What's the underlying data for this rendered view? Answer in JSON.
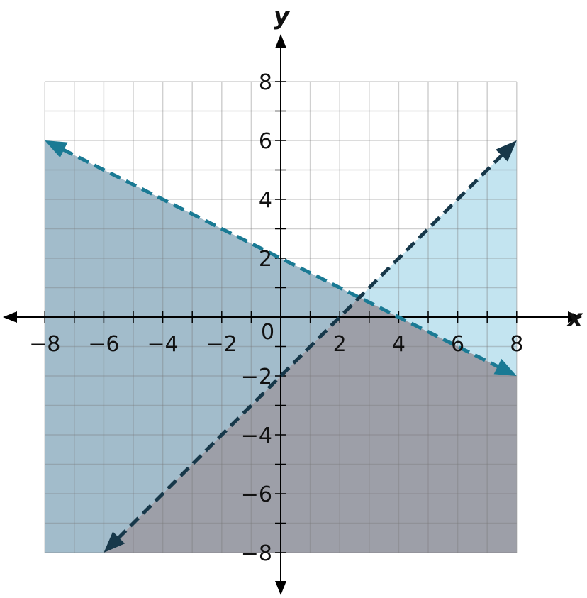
{
  "chart_data": {
    "type": "line",
    "title": "",
    "xlabel": "x",
    "ylabel": "y",
    "xlim": [
      -8,
      8
    ],
    "ylim": [
      -8,
      8
    ],
    "grid": true,
    "x_tick_labels": [
      "−8",
      "−6",
      "−4",
      "−2",
      "2",
      "4",
      "6",
      "8"
    ],
    "y_tick_labels": [
      "8",
      "6",
      "4",
      "2",
      "−2",
      "−4",
      "−6",
      "−8"
    ],
    "origin_label": "0",
    "series": [
      {
        "equation": "y = -x/2 + 2",
        "x": [
          -8,
          8
        ],
        "y": [
          6,
          -2
        ],
        "style": "dashed",
        "color": "#1a7a94",
        "shaded": "below"
      },
      {
        "equation": "y = x - 2",
        "x": [
          -6,
          8
        ],
        "y": [
          -8,
          6
        ],
        "style": "dashed",
        "color": "#17384a",
        "shaded": "below-right"
      }
    ],
    "regions": [
      {
        "description": "below y=x-2 only",
        "color": "#c3e4f0",
        "vertices": [
          [
            2.667,
            0.667
          ],
          [
            8,
            6
          ],
          [
            8,
            -2
          ]
        ]
      },
      {
        "description": "below y=-x/2+2 only",
        "color": "#a2bccb",
        "vertices": [
          [
            -8,
            6
          ],
          [
            2.667,
            0.667
          ],
          [
            -6,
            -8
          ],
          [
            -8,
            -8
          ]
        ]
      },
      {
        "description": "both",
        "color": "#9d9fa8",
        "vertices": [
          [
            2.667,
            0.667
          ],
          [
            8,
            -2
          ],
          [
            8,
            -8
          ],
          [
            -6,
            -8
          ]
        ]
      }
    ]
  }
}
